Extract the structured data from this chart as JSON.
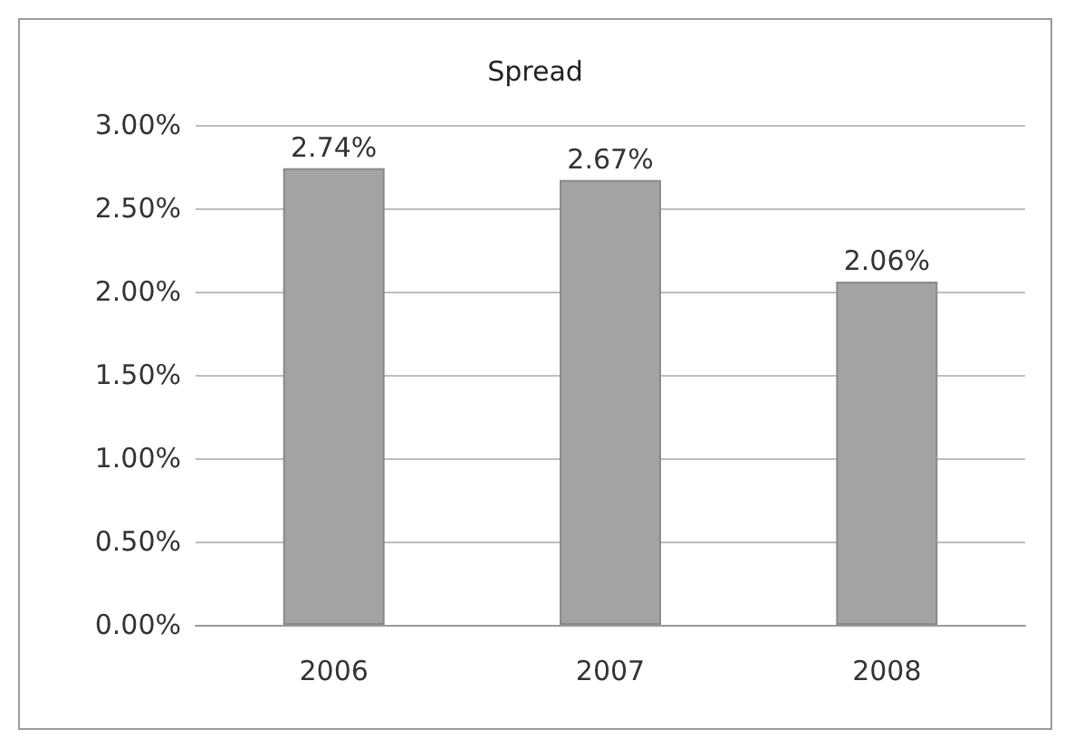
{
  "chart_data": {
    "type": "bar",
    "title": "Spread",
    "categories": [
      "2006",
      "2007",
      "2008"
    ],
    "values": [
      2.74,
      2.67,
      2.06
    ],
    "color": "#a3a3a3",
    "value_labels": [
      "2.74%",
      "2.67%",
      "2.06%"
    ],
    "ylim": [
      0,
      3
    ],
    "yticks": [
      {
        "value": 0,
        "label": "0.00%"
      },
      {
        "value": 0.5,
        "label": "0.50%"
      },
      {
        "value": 1,
        "label": "1.00%"
      },
      {
        "value": 1.5,
        "label": "1.50%"
      },
      {
        "value": 2,
        "label": "2.00%"
      },
      {
        "value": 2.5,
        "label": "2.50%"
      },
      {
        "value": 3,
        "label": "3.00%"
      }
    ],
    "grid": "y"
  }
}
